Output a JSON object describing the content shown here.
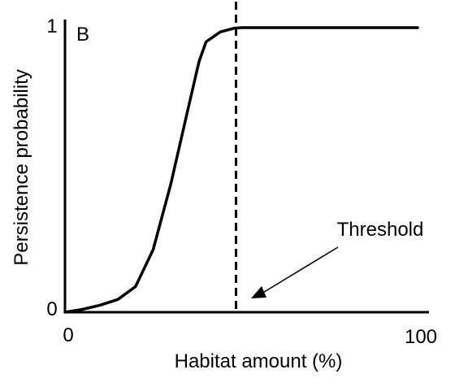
{
  "chart_data": {
    "type": "line",
    "panel_label": "B",
    "xlabel": "Habitat amount (%)",
    "ylabel": "Persistence probability",
    "xlim": [
      0,
      100
    ],
    "ylim": [
      0,
      1
    ],
    "x_ticks": [
      {
        "value": 0,
        "label": "0"
      },
      {
        "value": 100,
        "label": "100"
      }
    ],
    "y_ticks": [
      {
        "value": 0,
        "label": "0"
      },
      {
        "value": 1,
        "label": "1"
      }
    ],
    "grid": false,
    "series": [
      {
        "points": [
          [
            0,
            0.0
          ],
          [
            5,
            0.01
          ],
          [
            10,
            0.025
          ],
          [
            15,
            0.045
          ],
          [
            20,
            0.09
          ],
          [
            25,
            0.22
          ],
          [
            30,
            0.45
          ],
          [
            35,
            0.72
          ],
          [
            38,
            0.88
          ],
          [
            40,
            0.95
          ],
          [
            44,
            0.985
          ],
          [
            48,
            0.998
          ],
          [
            50,
            1.0
          ],
          [
            60,
            1.0
          ],
          [
            80,
            1.0
          ],
          [
            100,
            1.0
          ]
        ]
      }
    ],
    "threshold": {
      "x": 48.5
    },
    "annotations": [
      {
        "text": "Threshold",
        "points_to_x": 48.5
      }
    ]
  },
  "colors": {
    "line": "#000000",
    "background": "#ffffff"
  }
}
